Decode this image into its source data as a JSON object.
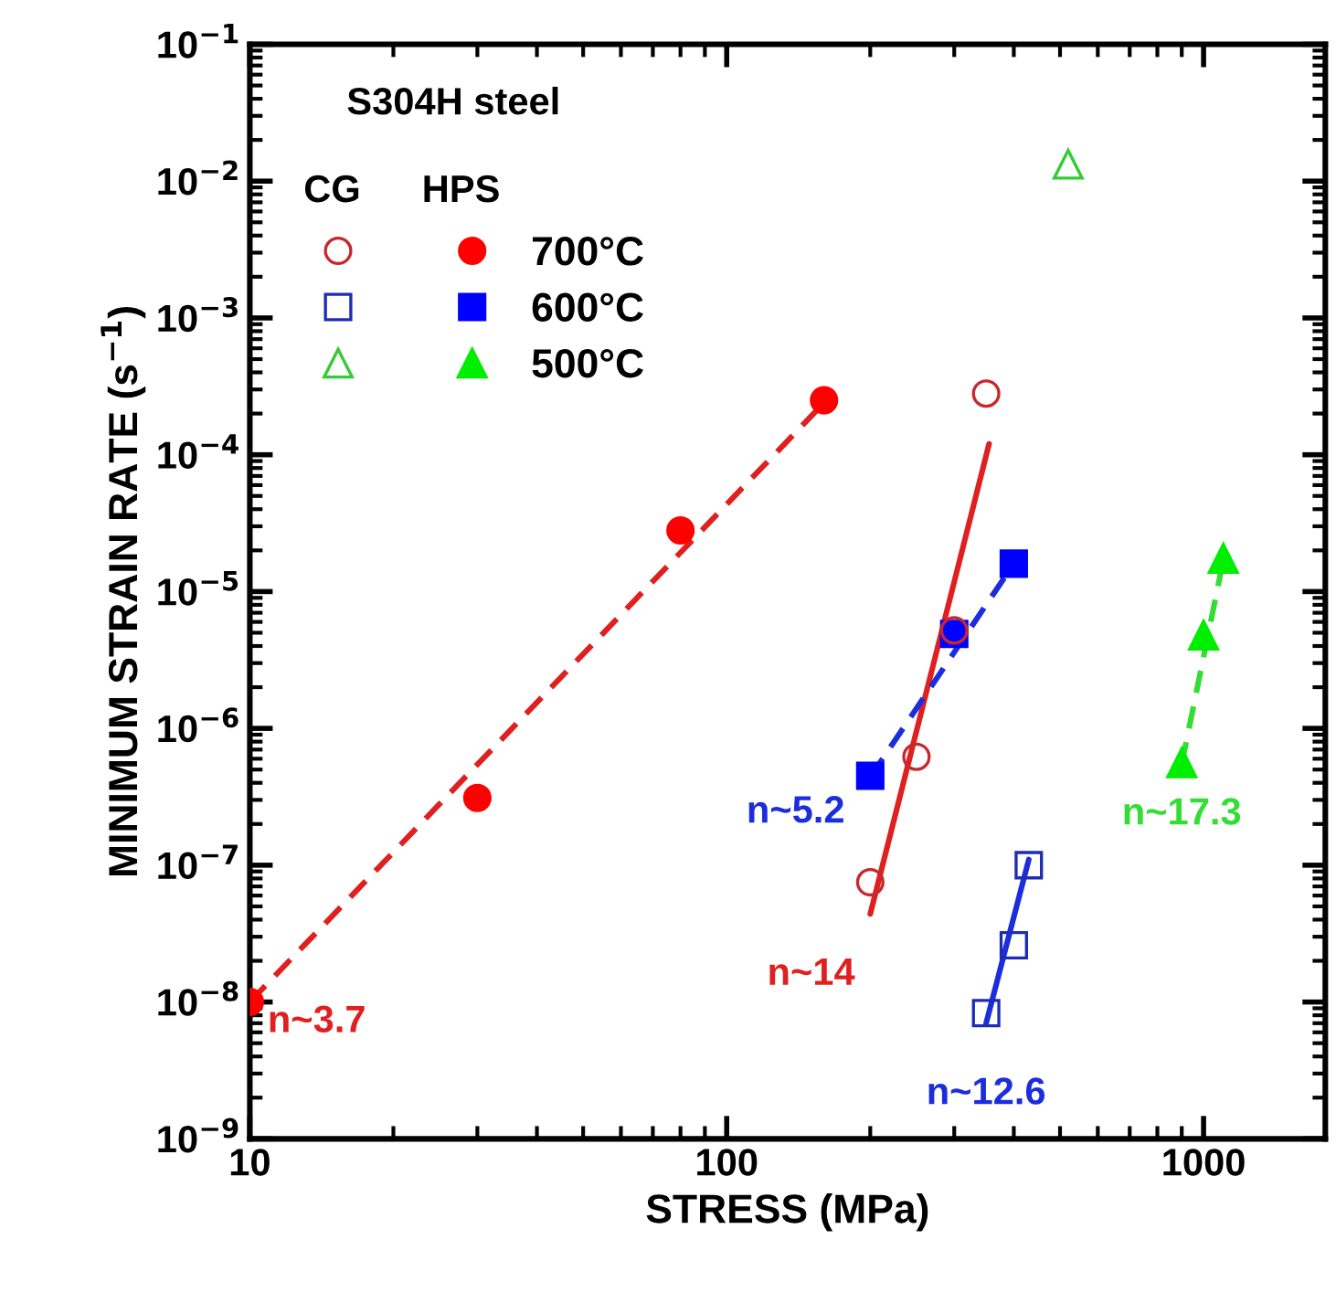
{
  "chart_data": {
    "type": "scatter",
    "xlabel": "STRESS (MPa)",
    "ylabel": "MINIMUM STRAIN RATE (s$^{−1}$)",
    "log": "xy",
    "xlim": [
      10,
      1800
    ],
    "ylim": [
      1e-09,
      0.1
    ],
    "xticks": [
      10,
      100,
      1000
    ],
    "yticks": [
      {
        "value": 1e-09,
        "label": "10$^{−9}$"
      },
      {
        "value": 1e-08,
        "label": "10$^{−8}$"
      },
      {
        "value": 1e-07,
        "label": "10$^{−7}$"
      },
      {
        "value": 1e-06,
        "label": "10$^{−6}$"
      },
      {
        "value": 1e-05,
        "label": "10$^{−5}$"
      },
      {
        "value": 0.0001,
        "label": "10$^{−4}$"
      },
      {
        "value": 0.001,
        "label": "10$^{−3}$"
      },
      {
        "value": 0.01,
        "label": "10$^{−2}$"
      },
      {
        "value": 0.1,
        "label": "10$^{−1}$"
      }
    ],
    "grid": false,
    "legend": "top left",
    "annotations": [
      "S304H steel",
      "CG",
      "HPS"
    ],
    "series": [
      {
        "marker": "circle",
        "color": "#c8282d",
        "x": [
          200,
          250,
          300,
          350
        ],
        "values": [
          7.5e-08,
          6.2e-07,
          5.2e-06,
          0.00028
        ]
      },
      {
        "marker": "square",
        "color": "#1c2db4",
        "x": [
          350,
          400,
          430
        ],
        "values": [
          8.3e-09,
          2.6e-08,
          1e-07
        ]
      },
      {
        "marker": "triangle",
        "color": "#33cc33",
        "x": [
          520
        ],
        "values": [
          0.0133
        ]
      },
      {
        "name": "700°C",
        "marker": "circle",
        "color": "#ff0000",
        "x": [
          10,
          30,
          80,
          160
        ],
        "values": [
          1e-08,
          3.1e-07,
          2.8e-05,
          0.00025
        ]
      },
      {
        "name": "600°C",
        "marker": "square",
        "color": "#0000ff",
        "x": [
          200,
          300,
          400
        ],
        "values": [
          4.5e-07,
          4.9e-06,
          1.6e-05
        ]
      },
      {
        "name": "500°C",
        "marker": "triangle",
        "color": "#00ee00",
        "x": [
          900,
          1000,
          1100
        ],
        "values": [
          5.6e-07,
          4.8e-06,
          1.75e-05
        ]
      },
      {
        "type": "line",
        "name": "n~3.7",
        "line_style": "dashed",
        "color": "#e02020",
        "x": [
          10,
          160
        ],
        "values": [
          1e-08,
          0.00024
        ]
      },
      {
        "type": "line",
        "name": "n~14",
        "line_style": "solid",
        "color": "#e02020",
        "x": [
          200,
          355
        ],
        "values": [
          4.4e-08,
          0.00012
        ]
      },
      {
        "type": "line",
        "name": "n~5.2",
        "line_style": "dashed",
        "color": "#1c2ddc",
        "x": [
          200,
          400
        ],
        "values": [
          4.4e-07,
          1.6e-05
        ]
      },
      {
        "type": "line",
        "name": "n~12.6",
        "line_style": "solid",
        "color": "#1c2ddc",
        "x": [
          350,
          430
        ],
        "values": [
          7e-09,
          1.1e-07
        ]
      },
      {
        "type": "line",
        "name": "n~17.3",
        "line_style": "dashed",
        "color": "#33dd33",
        "x": [
          900,
          1100
        ],
        "values": [
          5.5e-07,
          1.7e-05
        ]
      }
    ]
  }
}
